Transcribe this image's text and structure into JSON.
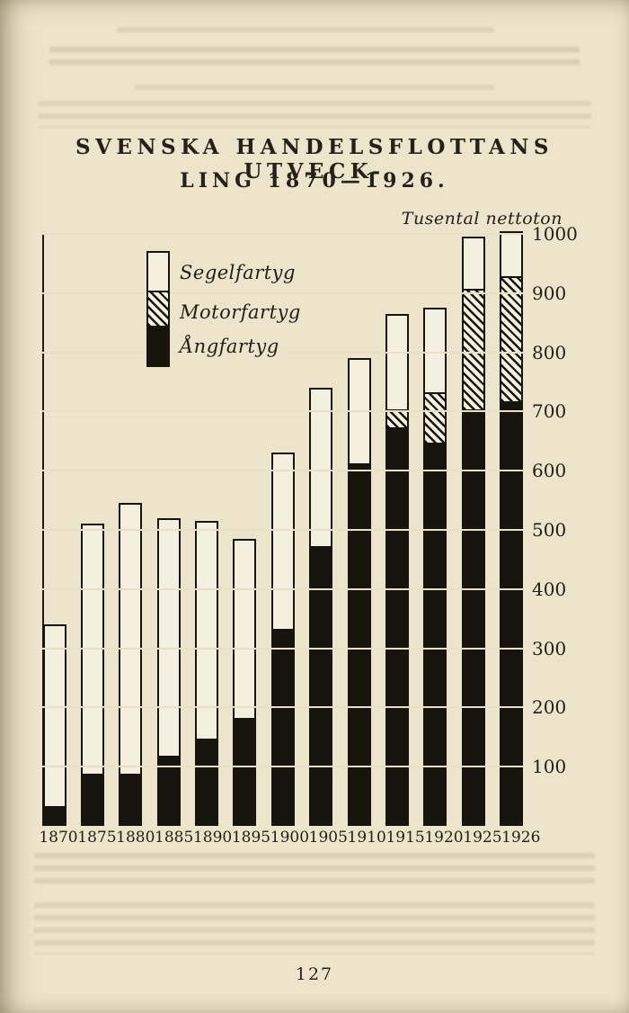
{
  "page": {
    "title_line1": "SVENSKA HANDELSFLOTTANS UTVECK-",
    "title_line2": "LING 1870—1926.",
    "page_number": "127"
  },
  "chart_data": {
    "type": "bar",
    "stacked": true,
    "title": "Svenska handelsflottans utveckling 1870—1926",
    "unit_label": "Tusental nettoton",
    "categories": [
      "1870",
      "1875",
      "1880",
      "1885",
      "1890",
      "1895",
      "1900",
      "1905",
      "1910",
      "1915",
      "1920",
      "1925",
      "1926"
    ],
    "series": [
      {
        "name": "Segelfartyg",
        "pattern": "white",
        "values": [
          310,
          425,
          460,
          405,
          370,
          305,
          300,
          270,
          180,
          165,
          145,
          90,
          80
        ]
      },
      {
        "name": "Motorfartyg",
        "pattern": "hatched",
        "values": [
          0,
          0,
          0,
          0,
          0,
          0,
          0,
          0,
          0,
          30,
          85,
          205,
          210
        ]
      },
      {
        "name": "Ångfartyg",
        "pattern": "black",
        "values": [
          30,
          85,
          85,
          115,
          145,
          180,
          330,
          470,
          610,
          670,
          645,
          700,
          715
        ]
      }
    ],
    "totals": [
      340,
      510,
      545,
      520,
      515,
      485,
      630,
      740,
      790,
      865,
      875,
      995,
      1005
    ],
    "ylim": [
      0,
      1000
    ],
    "y_ticks": [
      100,
      200,
      300,
      400,
      500,
      600,
      700,
      800,
      900,
      1000
    ],
    "grid": true,
    "legend_position": "top-left",
    "paper_color": "#ece4cb",
    "ink_color": "#16140d"
  }
}
